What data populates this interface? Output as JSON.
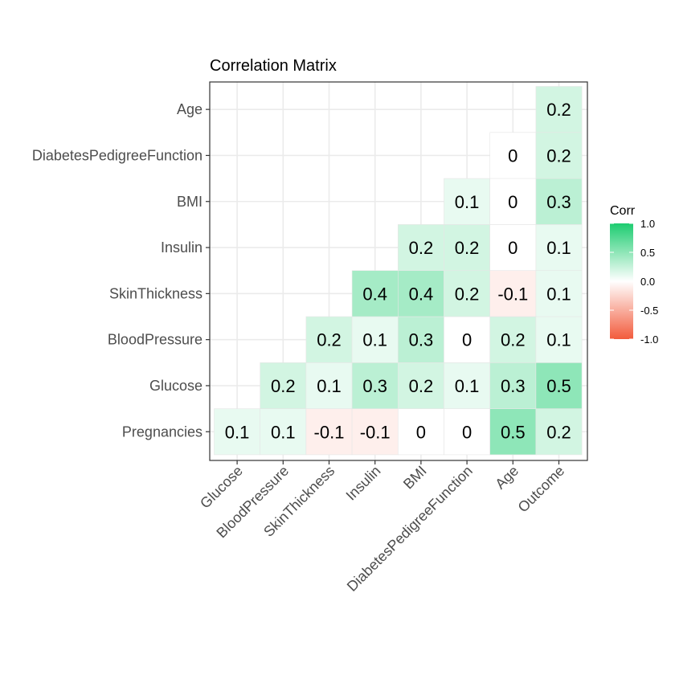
{
  "chart_data": {
    "type": "heatmap",
    "title": "Correlation Matrix",
    "x_categories": [
      "Glucose",
      "BloodPressure",
      "SkinThickness",
      "Insulin",
      "BMI",
      "DiabetesPedigreeFunction",
      "Age",
      "Outcome"
    ],
    "y_categories": [
      "Pregnancies",
      "Glucose",
      "BloodPressure",
      "SkinThickness",
      "Insulin",
      "BMI",
      "DiabetesPedigreeFunction",
      "Age"
    ],
    "cells": [
      {
        "x": "Glucose",
        "y": "Pregnancies",
        "value": 0.1,
        "label": "0.1"
      },
      {
        "x": "BloodPressure",
        "y": "Pregnancies",
        "value": 0.1,
        "label": "0.1"
      },
      {
        "x": "SkinThickness",
        "y": "Pregnancies",
        "value": -0.1,
        "label": "-0.1"
      },
      {
        "x": "Insulin",
        "y": "Pregnancies",
        "value": -0.1,
        "label": "-0.1"
      },
      {
        "x": "BMI",
        "y": "Pregnancies",
        "value": 0,
        "label": "0"
      },
      {
        "x": "DiabetesPedigreeFunction",
        "y": "Pregnancies",
        "value": 0,
        "label": "0"
      },
      {
        "x": "Age",
        "y": "Pregnancies",
        "value": 0.5,
        "label": "0.5"
      },
      {
        "x": "Outcome",
        "y": "Pregnancies",
        "value": 0.2,
        "label": "0.2"
      },
      {
        "x": "BloodPressure",
        "y": "Glucose",
        "value": 0.2,
        "label": "0.2"
      },
      {
        "x": "SkinThickness",
        "y": "Glucose",
        "value": 0.1,
        "label": "0.1"
      },
      {
        "x": "Insulin",
        "y": "Glucose",
        "value": 0.3,
        "label": "0.3"
      },
      {
        "x": "BMI",
        "y": "Glucose",
        "value": 0.2,
        "label": "0.2"
      },
      {
        "x": "DiabetesPedigreeFunction",
        "y": "Glucose",
        "value": 0.1,
        "label": "0.1"
      },
      {
        "x": "Age",
        "y": "Glucose",
        "value": 0.3,
        "label": "0.3"
      },
      {
        "x": "Outcome",
        "y": "Glucose",
        "value": 0.5,
        "label": "0.5"
      },
      {
        "x": "SkinThickness",
        "y": "BloodPressure",
        "value": 0.2,
        "label": "0.2"
      },
      {
        "x": "Insulin",
        "y": "BloodPressure",
        "value": 0.1,
        "label": "0.1"
      },
      {
        "x": "BMI",
        "y": "BloodPressure",
        "value": 0.3,
        "label": "0.3"
      },
      {
        "x": "DiabetesPedigreeFunction",
        "y": "BloodPressure",
        "value": 0,
        "label": "0"
      },
      {
        "x": "Age",
        "y": "BloodPressure",
        "value": 0.2,
        "label": "0.2"
      },
      {
        "x": "Outcome",
        "y": "BloodPressure",
        "value": 0.1,
        "label": "0.1"
      },
      {
        "x": "Insulin",
        "y": "SkinThickness",
        "value": 0.4,
        "label": "0.4"
      },
      {
        "x": "BMI",
        "y": "SkinThickness",
        "value": 0.4,
        "label": "0.4"
      },
      {
        "x": "DiabetesPedigreeFunction",
        "y": "SkinThickness",
        "value": 0.2,
        "label": "0.2"
      },
      {
        "x": "Age",
        "y": "SkinThickness",
        "value": -0.1,
        "label": "-0.1"
      },
      {
        "x": "Outcome",
        "y": "SkinThickness",
        "value": 0.1,
        "label": "0.1"
      },
      {
        "x": "BMI",
        "y": "Insulin",
        "value": 0.2,
        "label": "0.2"
      },
      {
        "x": "DiabetesPedigreeFunction",
        "y": "Insulin",
        "value": 0.2,
        "label": "0.2"
      },
      {
        "x": "Age",
        "y": "Insulin",
        "value": 0,
        "label": "0"
      },
      {
        "x": "Outcome",
        "y": "Insulin",
        "value": 0.1,
        "label": "0.1"
      },
      {
        "x": "DiabetesPedigreeFunction",
        "y": "BMI",
        "value": 0.1,
        "label": "0.1"
      },
      {
        "x": "Age",
        "y": "BMI",
        "value": 0,
        "label": "0"
      },
      {
        "x": "Outcome",
        "y": "BMI",
        "value": 0.3,
        "label": "0.3"
      },
      {
        "x": "Age",
        "y": "DiabetesPedigreeFunction",
        "value": 0,
        "label": "0"
      },
      {
        "x": "Outcome",
        "y": "DiabetesPedigreeFunction",
        "value": 0.2,
        "label": "0.2"
      },
      {
        "x": "Outcome",
        "y": "Age",
        "value": 0.2,
        "label": "0.2"
      }
    ],
    "legend": {
      "title": "Corr",
      "placement": "right",
      "ticks": [
        "1.0",
        "0.5",
        "0.0",
        "-0.5",
        "-1.0"
      ],
      "tick_values": [
        1.0,
        0.5,
        0.0,
        -0.5,
        -1.0
      ],
      "range": [
        -1,
        1
      ]
    },
    "colors": {
      "high": "#1dcc70",
      "mid": "#ffffff",
      "low": "#f25b3c",
      "panel_border": "#333333",
      "grid": "#ebebeb",
      "tick_text": "#4d4d4d"
    },
    "grid": true,
    "theme": "bw"
  }
}
